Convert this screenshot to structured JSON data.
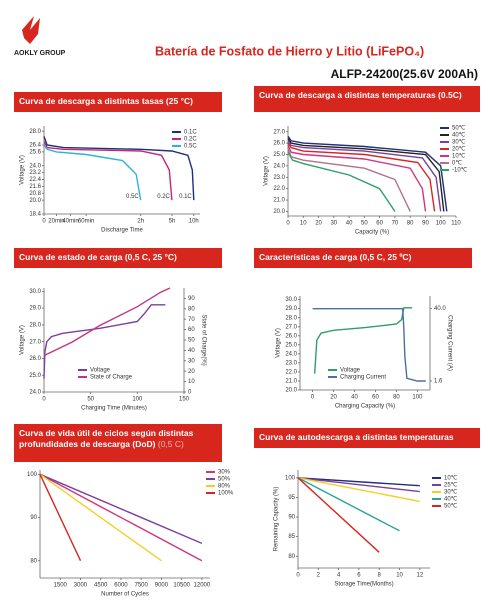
{
  "header": {
    "logo": "AOKLY GROUP",
    "title": "Batería de Fosfato de Hierro y Litio (LiFePO₄)",
    "model": "ALFP-24200(25.6V 200Ah)"
  },
  "chart_data": [
    {
      "type": "line",
      "title": "Curva de descarga a distintas tasas (25 °C)",
      "xlabel": "Discharge Time",
      "ylabel": "Voltage (V)",
      "xlim": [
        0,
        600
      ],
      "xticks": [
        0,
        {
          "value": 20,
          "label": "20min"
        },
        {
          "value": 40,
          "label": "40min"
        },
        {
          "value": 60,
          "label": "60min"
        },
        {
          "value": 120,
          "label": "2h"
        },
        {
          "value": 300,
          "label": "5h"
        },
        {
          "value": 600,
          "label": "10h"
        }
      ],
      "ylim": [
        18.4,
        28.6
      ],
      "yticks": [
        {
          "value": 28,
          "label": "28.0"
        },
        26.4,
        25.6,
        {
          "value": 24,
          "label": "24.0"
        },
        23.2,
        22.4,
        21.6,
        20.8,
        {
          "value": 20,
          "label": "20.0"
        },
        18.4
      ],
      "series": [
        {
          "name": "0.1C",
          "color": "#1f2f7a",
          "end_label": "0.1C",
          "x": [
            0,
            5,
            30,
            120,
            300,
            520,
            580,
            600
          ],
          "values": [
            27.4,
            26.4,
            26.1,
            25.9,
            25.7,
            25.2,
            23.5,
            20.0
          ]
        },
        {
          "name": "0.2C",
          "color": "#c0287a",
          "end_label": "0.2C",
          "x": [
            0,
            5,
            30,
            120,
            240,
            285,
            300
          ],
          "values": [
            26.8,
            26.1,
            25.9,
            25.7,
            25.2,
            23.5,
            20.0
          ]
        },
        {
          "name": "0.5C",
          "color": "#29b6d6",
          "end_label": "0.5C",
          "x": [
            0,
            5,
            20,
            60,
            100,
            115,
            120
          ],
          "values": [
            26.4,
            25.9,
            25.6,
            25.3,
            24.6,
            23.0,
            20.0
          ]
        }
      ]
    },
    {
      "type": "line",
      "title": "Curva de descarga a distintas temperaturas (0.5C)",
      "xlabel": "Capacity (%)",
      "ylabel": "Voltage (V)",
      "xlim": [
        0,
        110
      ],
      "xticks": [
        0,
        10,
        20,
        30,
        40,
        50,
        60,
        70,
        80,
        90,
        100,
        110
      ],
      "ylim": [
        19.6,
        27.5
      ],
      "yticks": [
        {
          "value": 27,
          "label": "27.0"
        },
        {
          "value": 26,
          "label": "26.0"
        },
        {
          "value": 25,
          "label": "25.0"
        },
        {
          "value": 24,
          "label": "24.0"
        },
        {
          "value": 23,
          "label": "23.0"
        },
        {
          "value": 22,
          "label": "22.0"
        },
        {
          "value": 21,
          "label": "21.0"
        },
        {
          "value": 20,
          "label": "20.0"
        }
      ],
      "series": [
        {
          "name": "50℃",
          "color": "#1f2f7a",
          "x": [
            0,
            2,
            10,
            50,
            90,
            100,
            104
          ],
          "values": [
            26.6,
            26.2,
            26.0,
            25.7,
            25.2,
            24.0,
            20.0
          ]
        },
        {
          "name": "40℃",
          "color": "#222222",
          "x": [
            0,
            2,
            10,
            50,
            90,
            99,
            102
          ],
          "values": [
            26.4,
            26.0,
            25.8,
            25.5,
            25.0,
            23.5,
            20.0
          ]
        },
        {
          "name": "30℃",
          "color": "#7b3fa0",
          "x": [
            0,
            2,
            10,
            50,
            88,
            97,
            100
          ],
          "values": [
            26.2,
            25.8,
            25.6,
            25.3,
            24.7,
            23.0,
            20.0
          ]
        },
        {
          "name": "20℃",
          "color": "#d7261e",
          "x": [
            0,
            2,
            10,
            50,
            85,
            93,
            96
          ],
          "values": [
            26.0,
            25.6,
            25.3,
            25.0,
            24.3,
            22.8,
            20.0
          ]
        },
        {
          "name": "10℃",
          "color": "#d0357e",
          "x": [
            0,
            2,
            10,
            50,
            80,
            88,
            90
          ],
          "values": [
            25.8,
            25.2,
            25.0,
            24.6,
            23.8,
            22.0,
            20.0
          ]
        },
        {
          "name": "0℃",
          "color": "#b07090",
          "x": [
            0,
            2,
            10,
            50,
            70,
            80
          ],
          "values": [
            25.5,
            24.8,
            24.5,
            23.8,
            22.8,
            20.0
          ]
        },
        {
          "name": "-10℃",
          "color": "#2e9e6a",
          "x": [
            0,
            3,
            10,
            40,
            60,
            70
          ],
          "values": [
            25.2,
            24.5,
            24.2,
            23.2,
            22.0,
            20.0
          ]
        }
      ]
    },
    {
      "type": "line",
      "title": "Curva de estado de carga (0,5 C, 25 °C)",
      "xlabel": "Charging Time (Minutes)",
      "ylabel": "Voltage (V)",
      "y2label": "State of Charge(%)",
      "xlim": [
        0,
        150
      ],
      "xticks": [
        0,
        50,
        100,
        150
      ],
      "ylim": [
        24,
        30.2
      ],
      "yticks": [
        {
          "value": 24,
          "label": "24.0"
        },
        {
          "value": 25,
          "label": "25.0"
        },
        {
          "value": 26,
          "label": "26.0"
        },
        {
          "value": 27,
          "label": "27.0"
        },
        {
          "value": 28,
          "label": "28.0"
        },
        {
          "value": 29,
          "label": "29.0"
        },
        {
          "value": 30,
          "label": "30.0"
        }
      ],
      "y2lim": [
        0,
        100
      ],
      "y2ticks": [
        0,
        10,
        20,
        30,
        40,
        50,
        60,
        70,
        80,
        90
      ],
      "series": [
        {
          "name": "Voltage",
          "color": "#7b3fa0",
          "x": [
            0,
            1,
            3,
            8,
            20,
            60,
            100,
            108,
            115,
            130
          ],
          "values": [
            24.8,
            26.4,
            27.0,
            27.3,
            27.5,
            27.8,
            28.2,
            28.7,
            29.2,
            29.2
          ]
        },
        {
          "name": "State of Charge",
          "color": "#c2357d",
          "axis": "y2",
          "x": [
            0,
            30,
            60,
            100,
            125,
            135
          ],
          "values": [
            35,
            48,
            64,
            82,
            96,
            100
          ]
        }
      ]
    },
    {
      "type": "line",
      "title": "Características de carga (0,5 C, 25 ºC)",
      "xlabel": "Charging Capacity (%)",
      "ylabel": "Voltage (V)",
      "y2label": "Charging Current (A)",
      "xlim": [
        -12,
        112
      ],
      "xticks": [
        0,
        20,
        40,
        60,
        80,
        100
      ],
      "ylim": [
        20,
        30.4
      ],
      "yticks": [
        {
          "value": 20,
          "label": "20.0"
        },
        {
          "value": 21,
          "label": "21.0"
        },
        {
          "value": 22,
          "label": "22.0"
        },
        {
          "value": 23,
          "label": "23.0"
        },
        {
          "value": 24,
          "label": "24.0"
        },
        {
          "value": 25,
          "label": "25.0"
        },
        {
          "value": 26,
          "label": "26.0"
        },
        {
          "value": 27,
          "label": "27.0"
        },
        {
          "value": 28,
          "label": "28.0"
        },
        {
          "value": 29,
          "label": "29.0"
        },
        {
          "value": 30,
          "label": "30.0"
        }
      ],
      "y2lim": [
        -3.2,
        46.72
      ],
      "y2ticks": [
        1.6,
        {
          "value": 40,
          "label": "40.0"
        }
      ],
      "series": [
        {
          "name": "Voltage",
          "color": "#2e9e6a",
          "x": [
            2,
            4,
            8,
            20,
            50,
            80,
            85,
            87,
            95
          ],
          "values": [
            21.8,
            25.5,
            26.3,
            26.6,
            26.9,
            27.3,
            27.8,
            29.1,
            29.1
          ]
        },
        {
          "name": "Charging Current",
          "color": "#4a6fa5",
          "axis": "y2",
          "x": [
            0,
            86,
            87,
            88,
            90,
            100,
            108
          ],
          "values": [
            40,
            40,
            30,
            15,
            3,
            1.6,
            1.6
          ]
        }
      ]
    },
    {
      "type": "line",
      "title": "Curva de vida útil de ciclos según distintas profundidades de descarga (DoD)",
      "title_note": "(0,5 C)",
      "xlabel": "Number of Cycles",
      "xlim": [
        0,
        12600
      ],
      "xticks": [
        1500,
        3000,
        4500,
        6000,
        7500,
        9000,
        10500,
        12000
      ],
      "ylim": [
        76,
        101
      ],
      "yticks": [
        80,
        90,
        100
      ],
      "series": [
        {
          "name": "30%",
          "color": "#d0357e",
          "x": [
            0,
            12000
          ],
          "values": [
            100,
            80
          ]
        },
        {
          "name": "50%",
          "color": "#7b3fa0",
          "x": [
            0,
            12000
          ],
          "values": [
            100,
            84
          ]
        },
        {
          "name": "80%",
          "color": "#f2d023",
          "x": [
            0,
            9000
          ],
          "values": [
            100,
            80
          ]
        },
        {
          "name": "100%",
          "color": "#d7261e",
          "x": [
            0,
            3000
          ],
          "values": [
            100,
            80
          ]
        }
      ]
    },
    {
      "type": "line",
      "title": "Curva de autodescarga a distintas temperaturas",
      "xlabel": "Storage Time(Months)",
      "ylabel": "Remaining Capacity (%)",
      "xlim": [
        0,
        13
      ],
      "xticks": [
        0,
        2,
        4,
        6,
        8,
        10,
        12
      ],
      "ylim": [
        77,
        102
      ],
      "yticks": [
        80,
        85,
        90,
        95,
        100
      ],
      "series": [
        {
          "name": "10℃",
          "color": "#1f2f7a",
          "x": [
            0,
            12
          ],
          "values": [
            100,
            98
          ]
        },
        {
          "name": "25℃",
          "color": "#7b3fa0",
          "x": [
            0,
            12
          ],
          "values": [
            100,
            96.5
          ]
        },
        {
          "name": "30℃",
          "color": "#f2d023",
          "x": [
            0,
            12
          ],
          "values": [
            100,
            94
          ]
        },
        {
          "name": "40℃",
          "color": "#2aa39a",
          "x": [
            0,
            10
          ],
          "values": [
            100,
            86.5
          ]
        },
        {
          "name": "50℃",
          "color": "#d7261e",
          "x": [
            0,
            8
          ],
          "values": [
            100,
            81
          ]
        }
      ]
    }
  ]
}
